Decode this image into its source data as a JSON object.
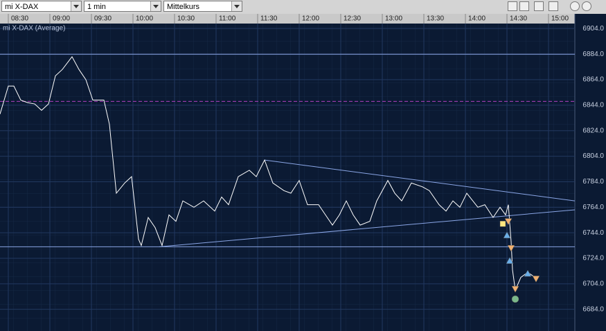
{
  "toolbar": {
    "instrument": "mi X-DAX",
    "interval": "1 min",
    "price": "Mittelkurs"
  },
  "chart_data": {
    "type": "line",
    "legend": "mi X-DAX (Average)",
    "xlim": [
      504,
      919
    ],
    "ylim": [
      6667,
      6908
    ],
    "xticks": [
      {
        "value": 510,
        "label": "08:30"
      },
      {
        "value": 540,
        "label": "09:00"
      },
      {
        "value": 570,
        "label": "09:30"
      },
      {
        "value": 600,
        "label": "10:00"
      },
      {
        "value": 630,
        "label": "10:30"
      },
      {
        "value": 660,
        "label": "11:00"
      },
      {
        "value": 690,
        "label": "11:30"
      },
      {
        "value": 720,
        "label": "12:00"
      },
      {
        "value": 750,
        "label": "12:30"
      },
      {
        "value": 780,
        "label": "13:00"
      },
      {
        "value": 810,
        "label": "13:30"
      },
      {
        "value": 840,
        "label": "14:00"
      },
      {
        "value": 870,
        "label": "14:30"
      },
      {
        "value": 900,
        "label": "15:00"
      }
    ],
    "yticks": [
      {
        "value": 6904,
        "label": "6904.0"
      },
      {
        "value": 6884,
        "label": "6884.0"
      },
      {
        "value": 6864,
        "label": "6864.0"
      },
      {
        "value": 6844,
        "label": "6844.0"
      },
      {
        "value": 6824,
        "label": "6824.0"
      },
      {
        "value": 6804,
        "label": "6804.0"
      },
      {
        "value": 6784,
        "label": "6784.0"
      },
      {
        "value": 6764,
        "label": "6764.0"
      },
      {
        "value": 6744,
        "label": "6744.0"
      },
      {
        "value": 6724,
        "label": "6724.0"
      },
      {
        "value": 6704,
        "label": "6704.0"
      },
      {
        "value": 6684,
        "label": "6684.0"
      }
    ],
    "grid": true,
    "series": [
      {
        "name": "mi X-DAX (Average)",
        "color": "#ffffff",
        "x": [
          504,
          510,
          514,
          519,
          524,
          529,
          534,
          539,
          544,
          549,
          556,
          561,
          566,
          571,
          579,
          583,
          588,
          594,
          599,
          604,
          606,
          611,
          616,
          621,
          626,
          631,
          636,
          644,
          651,
          659,
          664,
          669,
          676,
          684,
          689,
          695,
          701,
          709,
          714,
          720,
          726,
          734,
          739,
          744,
          749,
          754,
          759,
          764,
          771,
          776,
          784,
          789,
          794,
          801,
          809,
          814,
          821,
          826,
          831,
          836,
          841,
          849,
          854,
          860,
          865,
          869,
          871,
          873,
          874,
          876,
          880,
          885,
          889,
          891
        ],
        "values": [
          6837,
          6859,
          6859,
          6848,
          6846,
          6845,
          6840,
          6845,
          6867,
          6872,
          6882,
          6872,
          6864,
          6848,
          6848,
          6829,
          6775,
          6783,
          6788,
          6739,
          6734,
          6756,
          6748,
          6734,
          6758,
          6753,
          6769,
          6764,
          6769,
          6761,
          6772,
          6766,
          6788,
          6793,
          6788,
          6801,
          6783,
          6777,
          6775,
          6785,
          6766,
          6766,
          6758,
          6750,
          6758,
          6769,
          6758,
          6750,
          6753,
          6769,
          6785,
          6775,
          6769,
          6783,
          6780,
          6777,
          6766,
          6761,
          6769,
          6764,
          6775,
          6764,
          6766,
          6756,
          6764,
          6758,
          6766,
          6737,
          6715,
          6699,
          6709,
          6713,
          6710,
          6708
        ]
      }
    ],
    "hlines": [
      {
        "value": 6884,
        "color": "#8aa6e6",
        "dash": false
      },
      {
        "value": 6733,
        "color": "#8aa6e6",
        "dash": false
      },
      {
        "value": 6847,
        "color": "#b040c0",
        "dash": true
      }
    ],
    "trendlines": [
      {
        "x": [
          695,
          919
        ],
        "values": [
          6801,
          6769
        ],
        "color": "#8aa6e6"
      },
      {
        "x": [
          619,
          919
        ],
        "values": [
          6733,
          6762
        ],
        "color": "#8aa6e6"
      }
    ],
    "signals": [
      {
        "shape": "square",
        "x": 867,
        "value": 6751,
        "color": "#ffe680"
      },
      {
        "shape": "down",
        "x": 871,
        "value": 6753,
        "color": "#f0b070"
      },
      {
        "shape": "up",
        "x": 870,
        "value": 6742,
        "color": "#6aaee8"
      },
      {
        "shape": "down",
        "x": 873,
        "value": 6732,
        "color": "#f0b070"
      },
      {
        "shape": "up",
        "x": 872,
        "value": 6722,
        "color": "#6aaee8"
      },
      {
        "shape": "down",
        "x": 876,
        "value": 6700,
        "color": "#f0b070"
      },
      {
        "shape": "circle",
        "x": 876,
        "value": 6692,
        "color": "#7ab88a"
      },
      {
        "shape": "up",
        "x": 885,
        "value": 6712,
        "color": "#6aaee8"
      },
      {
        "shape": "down",
        "x": 891,
        "value": 6708,
        "color": "#f0b070"
      }
    ]
  }
}
